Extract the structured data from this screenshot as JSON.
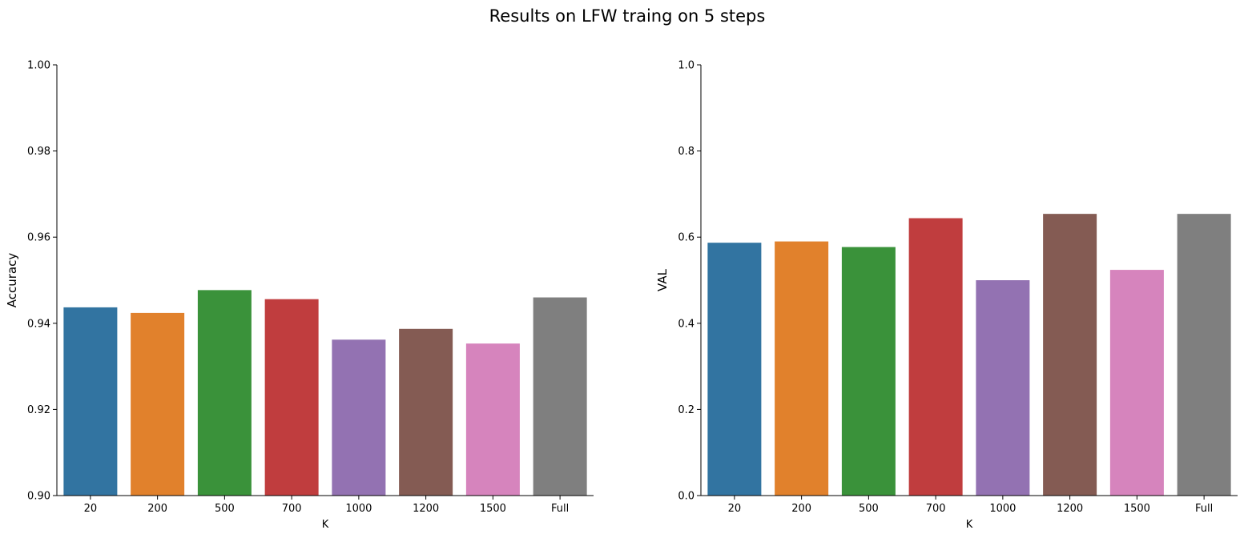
{
  "suptitle": "Results on LFW traing on 5 steps",
  "colors": [
    "#3274a1",
    "#e1812c",
    "#3a923a",
    "#c03d3e",
    "#9372b2",
    "#845b53",
    "#d684bd",
    "#7f7f7f"
  ],
  "chart_data": [
    {
      "type": "bar",
      "categories": [
        "20",
        "200",
        "500",
        "700",
        "1000",
        "1200",
        "1500",
        "Full"
      ],
      "values": [
        0.9437,
        0.9424,
        0.9477,
        0.9456,
        0.9362,
        0.9387,
        0.9353,
        0.946
      ],
      "xlabel": "K",
      "ylabel": "Accuracy",
      "ylim": [
        0.9,
        1.0
      ],
      "yticks": [
        "0.90",
        "0.92",
        "0.94",
        "0.96",
        "0.98",
        "1.00"
      ],
      "grid": false
    },
    {
      "type": "bar",
      "categories": [
        "20",
        "200",
        "500",
        "700",
        "1000",
        "1200",
        "1500",
        "Full"
      ],
      "values": [
        0.587,
        0.59,
        0.577,
        0.644,
        0.5,
        0.654,
        0.524,
        0.654
      ],
      "xlabel": "K",
      "ylabel": "VAL",
      "ylim": [
        0.0,
        1.0
      ],
      "yticks": [
        "0.0",
        "0.2",
        "0.4",
        "0.6",
        "0.8",
        "1.0"
      ],
      "grid": false
    }
  ]
}
